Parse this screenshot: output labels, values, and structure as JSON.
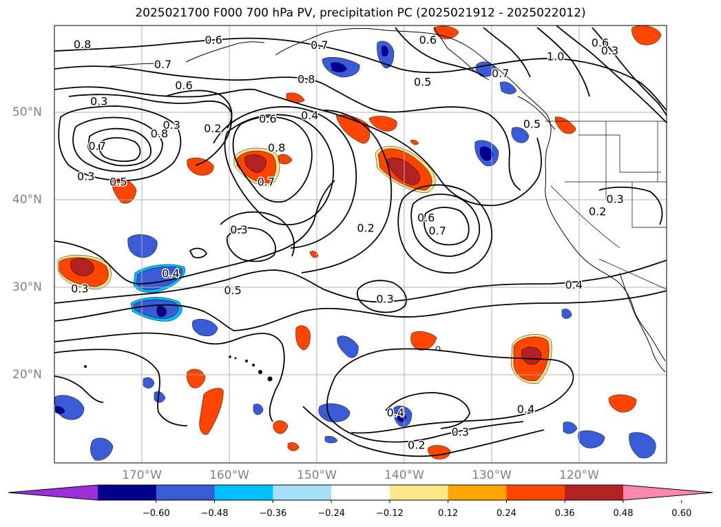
{
  "title": "2025021700 F000 700 hPa PV, precipitation PC (2025021912 - 2025022012)",
  "map": {
    "lat_labels": [
      {
        "text": "50°N",
        "lat": 50
      },
      {
        "text": "40°N",
        "lat": 40
      },
      {
        "text": "30°N",
        "lat": 30
      },
      {
        "text": "20°N",
        "lat": 20
      }
    ],
    "lon_labels": [
      {
        "text": "170°W",
        "lon": -170
      },
      {
        "text": "160°W",
        "lon": -160
      },
      {
        "text": "150°W",
        "lon": -150
      },
      {
        "text": "140°W",
        "lon": -140
      },
      {
        "text": "130°W",
        "lon": -130
      },
      {
        "text": "120°W",
        "lon": -120
      }
    ],
    "contour_labels": [
      {
        "text": "0.8",
        "lon": -176.8,
        "lat": 57.8
      },
      {
        "text": "0.6",
        "lon": -161.8,
        "lat": 58.3
      },
      {
        "text": "0.7",
        "lon": -149.7,
        "lat": 57.7
      },
      {
        "text": "0.6",
        "lon": -137.3,
        "lat": 58.3
      },
      {
        "text": "1.0",
        "lon": -122.7,
        "lat": 56.4
      },
      {
        "text": "0.6",
        "lon": -117.6,
        "lat": 58.0
      },
      {
        "text": "0.3",
        "lon": -116.5,
        "lat": 57.1
      },
      {
        "text": "0.7",
        "lon": -167.6,
        "lat": 55.5
      },
      {
        "text": "0.8",
        "lon": -151.2,
        "lat": 53.8
      },
      {
        "text": "0.5",
        "lon": -137.9,
        "lat": 53.5
      },
      {
        "text": "0.7",
        "lon": -129.0,
        "lat": 54.5
      },
      {
        "text": "0.6",
        "lon": -165.2,
        "lat": 53.1
      },
      {
        "text": "0.3",
        "lon": -174.9,
        "lat": 51.3
      },
      {
        "text": "0.6",
        "lon": -155.6,
        "lat": 49.3
      },
      {
        "text": "0.4",
        "lon": -150.8,
        "lat": 49.7
      },
      {
        "text": "0.3",
        "lon": -166.6,
        "lat": 48.6
      },
      {
        "text": "0.2",
        "lon": -161.9,
        "lat": 48.2
      },
      {
        "text": "0.8",
        "lon": -168.0,
        "lat": 47.6
      },
      {
        "text": "0.7",
        "lon": -175.1,
        "lat": 46.2
      },
      {
        "text": "0.8",
        "lon": -154.6,
        "lat": 46.0
      },
      {
        "text": "0.5",
        "lon": -125.4,
        "lat": 48.7
      },
      {
        "text": "0.3",
        "lon": -176.4,
        "lat": 42.7
      },
      {
        "text": "0.5",
        "lon": -172.7,
        "lat": 42.1
      },
      {
        "text": "0.7",
        "lon": -155.8,
        "lat": 42.1
      },
      {
        "text": "0.6",
        "lon": -137.5,
        "lat": 38.0
      },
      {
        "text": "0.7",
        "lon": -136.2,
        "lat": 36.5
      },
      {
        "text": "0.2",
        "lon": -144.4,
        "lat": 36.8
      },
      {
        "text": "0.2",
        "lon": -117.9,
        "lat": 38.7
      },
      {
        "text": "0.3",
        "lon": -115.9,
        "lat": 40.1
      },
      {
        "text": "0.3",
        "lon": -158.9,
        "lat": 36.6
      },
      {
        "text": "0.4",
        "lon": -166.7,
        "lat": 31.6
      },
      {
        "text": "0.3",
        "lon": -177.1,
        "lat": 29.9
      },
      {
        "text": "0.5",
        "lon": -159.6,
        "lat": 29.7
      },
      {
        "text": "0.3",
        "lon": -142.2,
        "lat": 28.7
      },
      {
        "text": "0.4",
        "lon": -120.6,
        "lat": 30.3
      },
      {
        "text": "0.4",
        "lon": -141.0,
        "lat": 15.7
      },
      {
        "text": "0.4",
        "lon": -126.1,
        "lat": 16.1
      },
      {
        "text": "0.3",
        "lon": -133.6,
        "lat": 13.5
      },
      {
        "text": "0.2",
        "lon": -138.6,
        "lat": 12.0
      }
    ]
  },
  "colorbar": {
    "ticks": [
      "−0.60",
      "−0.48",
      "−0.36",
      "−0.24",
      "−0.12",
      "0.12",
      "0.24",
      "0.36",
      "0.48",
      "0.60"
    ],
    "colors": [
      "#9b30d9",
      "#00008b",
      "#3a5bd6",
      "#00bfff",
      "#a8dff8",
      "#ffffff",
      "#ffe68a",
      "#ffa500",
      "#ff4500",
      "#b22222",
      "#ff88aa"
    ]
  },
  "colors": {
    "neg_dark": "#00008b",
    "neg_mid": "#3a5bd6",
    "neg_light": "#00bfff",
    "pos_light": "#ffe68a",
    "pos_mid": "#ff4500",
    "pos_dark": "#b22222",
    "grid": "#b0b0b0",
    "label": "#808080"
  }
}
